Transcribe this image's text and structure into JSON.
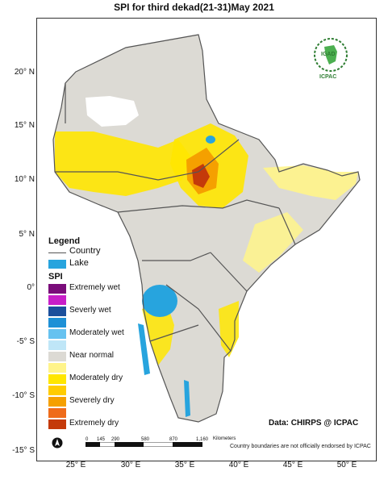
{
  "title": "SPI  for  third dekad(21-31)May 2021",
  "lat_labels": [
    "20° N",
    "15° N",
    "10° N",
    "5° N",
    "0°",
    "-5° S",
    "-10° S",
    "-15° S"
  ],
  "lon_labels": [
    "25° E",
    "30° E",
    "35° E",
    "40° E",
    "45° E",
    "50° E"
  ],
  "legend": {
    "title": "Legend",
    "country": "Country",
    "lake": "Lake",
    "spi_title": "SPI",
    "spi_classes": [
      {
        "label": "Extremely wet",
        "color": "#7a0c7a"
      },
      {
        "label": "",
        "color": "#c81ec8"
      },
      {
        "label": "Severly wet",
        "color": "#1b4f9c"
      },
      {
        "label": "",
        "color": "#1e90d6"
      },
      {
        "label": "Moderately wet",
        "color": "#66c2f0"
      },
      {
        "label": "",
        "color": "#bfe6f7"
      },
      {
        "label": "Near normal",
        "color": "#dcdad4"
      },
      {
        "label": "",
        "color": "#fff48a"
      },
      {
        "label": "Moderately dry",
        "color": "#ffe600"
      },
      {
        "label": "",
        "color": "#ffcc00"
      },
      {
        "label": "Severely dry",
        "color": "#f5a000"
      },
      {
        "label": "",
        "color": "#ef6b1a"
      },
      {
        "label": "Extremely dry",
        "color": "#c43a0a"
      }
    ]
  },
  "logo": {
    "top": "IGAD",
    "bottom": "ICPAC"
  },
  "scale_bar": {
    "ticks": [
      "0",
      "145",
      "290",
      "580",
      "870",
      "1,160"
    ],
    "unit": "Kilometers"
  },
  "credit": "Data: CHIRPS @ ICPAC",
  "disclaimer": "Country boundaries are not officially endorsed by ICPAC",
  "colors": {
    "lake": "#27a4de",
    "near_normal": "#dcdad4",
    "moderately_dry": "#ffe600",
    "border": "#555555"
  }
}
